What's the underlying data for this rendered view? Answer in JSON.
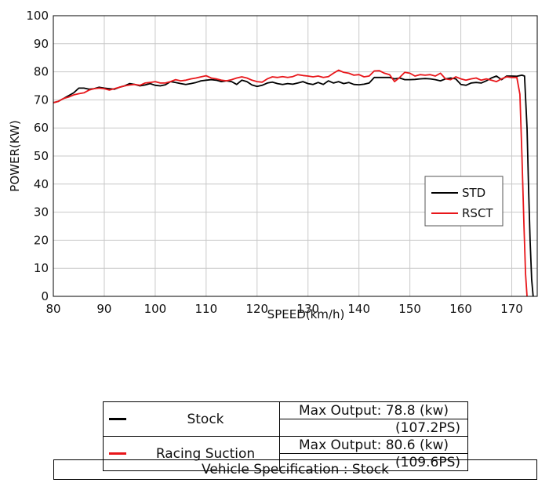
{
  "chart_data": {
    "type": "line",
    "xlabel": "SPEED(km/h)",
    "ylabel": "POWER(KW)",
    "xlim": [
      80,
      175
    ],
    "ylim": [
      0,
      100
    ],
    "x_ticks": [
      80,
      90,
      100,
      110,
      120,
      130,
      140,
      150,
      160,
      170
    ],
    "y_ticks": [
      0,
      10,
      20,
      30,
      40,
      50,
      60,
      70,
      80,
      90,
      100
    ],
    "grid": true,
    "legend_position": "right",
    "series": [
      {
        "name": "STD",
        "color": "#000000",
        "x": [
          80,
          81,
          82,
          83,
          84,
          85,
          86,
          87,
          88,
          89,
          90,
          91,
          92,
          93,
          94,
          95,
          96,
          97,
          98,
          99,
          100,
          101,
          102,
          103,
          104,
          105,
          106,
          107,
          108,
          109,
          110,
          111,
          112,
          113,
          114,
          115,
          116,
          117,
          118,
          119,
          120,
          121,
          122,
          123,
          124,
          125,
          126,
          127,
          128,
          129,
          130,
          131,
          132,
          133,
          134,
          135,
          136,
          137,
          138,
          139,
          140,
          141,
          142,
          143,
          144,
          145,
          146,
          147,
          148,
          149,
          150,
          151,
          152,
          153,
          154,
          155,
          156,
          157,
          158,
          159,
          160,
          161,
          162,
          163,
          164,
          165,
          166,
          167,
          168,
          169,
          170,
          171,
          172,
          172.5,
          173,
          173.3,
          173.6,
          173.9,
          174.2
        ],
        "y": [
          69,
          69.5,
          70.5,
          71.5,
          72.5,
          74.2,
          74.2,
          73.8,
          74,
          74.5,
          74.2,
          74,
          73.8,
          74.5,
          75,
          75.8,
          75.5,
          75,
          75.3,
          75.8,
          75.2,
          75,
          75.4,
          76.5,
          76.2,
          75.8,
          75.5,
          75.8,
          76.2,
          76.8,
          77,
          77.2,
          77,
          76.5,
          76.8,
          76.5,
          75.5,
          77,
          76.5,
          75.3,
          74.8,
          75.2,
          76,
          76.3,
          75.8,
          75.5,
          75.8,
          75.6,
          76,
          76.5,
          75.8,
          75.5,
          76.2,
          75.5,
          76.8,
          76,
          76.5,
          75.8,
          76.2,
          75.5,
          75.4,
          75.6,
          76,
          78,
          78,
          78,
          78,
          77.5,
          77.8,
          77.2,
          77.2,
          77.3,
          77.5,
          77.6,
          77.5,
          77.2,
          76.8,
          77.5,
          77.8,
          77.5,
          75.5,
          75.2,
          76,
          76.2,
          76,
          76.8,
          77.8,
          78.5,
          77.2,
          78.5,
          78.5,
          78.4,
          78.8,
          78.5,
          60,
          38,
          20,
          6,
          0
        ]
      },
      {
        "name": "RSCT",
        "color": "#e8161a",
        "x": [
          80,
          81,
          82,
          83,
          84,
          85,
          86,
          87,
          88,
          89,
          90,
          91,
          92,
          93,
          94,
          95,
          96,
          97,
          98,
          99,
          100,
          101,
          102,
          103,
          104,
          105,
          106,
          107,
          108,
          109,
          110,
          111,
          112,
          113,
          114,
          115,
          116,
          117,
          118,
          119,
          120,
          121,
          122,
          123,
          124,
          125,
          126,
          127,
          128,
          129,
          130,
          131,
          132,
          133,
          134,
          135,
          136,
          137,
          138,
          139,
          140,
          141,
          142,
          143,
          144,
          145,
          146,
          147,
          148,
          149,
          150,
          151,
          152,
          153,
          154,
          155,
          156,
          157,
          158,
          159,
          160,
          161,
          162,
          163,
          164,
          165,
          166,
          167,
          168,
          169,
          170,
          171,
          171.6,
          172,
          172.4,
          172.7,
          173
        ],
        "y": [
          69,
          69.5,
          70.5,
          71,
          71.8,
          72.2,
          72.5,
          73.5,
          74,
          74.2,
          74,
          73.5,
          74,
          74.5,
          75,
          75.3,
          75.5,
          75.2,
          76,
          76.2,
          76.5,
          76,
          76,
          76.5,
          77.2,
          76.8,
          77,
          77.5,
          77.8,
          78.2,
          78.6,
          77.8,
          77.5,
          77,
          76.8,
          77.2,
          77.8,
          78.2,
          77.8,
          77,
          76.5,
          76.3,
          77.5,
          78.2,
          78,
          78.3,
          78,
          78.3,
          79,
          78.7,
          78.5,
          78.2,
          78.5,
          78,
          78.3,
          79.5,
          80.6,
          79.8,
          79.5,
          78.8,
          79,
          78.2,
          78.5,
          80.3,
          80.4,
          79.5,
          79,
          76.5,
          78,
          79.8,
          79.5,
          78.5,
          79,
          78.8,
          79,
          78.5,
          79.5,
          77.5,
          77.2,
          78.2,
          77.5,
          77,
          77.5,
          77.8,
          77,
          77.5,
          77,
          76.5,
          77.5,
          78.2,
          78,
          78,
          72,
          50,
          25,
          8,
          0
        ]
      }
    ]
  },
  "results": {
    "rows": [
      {
        "name": "Stock",
        "color": "#000000",
        "max_output": "Max Output: 78.8 (kw)",
        "ps": "(107.2PS)"
      },
      {
        "name": "Racing Suction",
        "color": "#e8161a",
        "max_output": "Max Output: 80.6 (kw)",
        "ps": "(109.6PS)"
      }
    ]
  },
  "vehicle_spec": "Vehicle Specification : Stock"
}
